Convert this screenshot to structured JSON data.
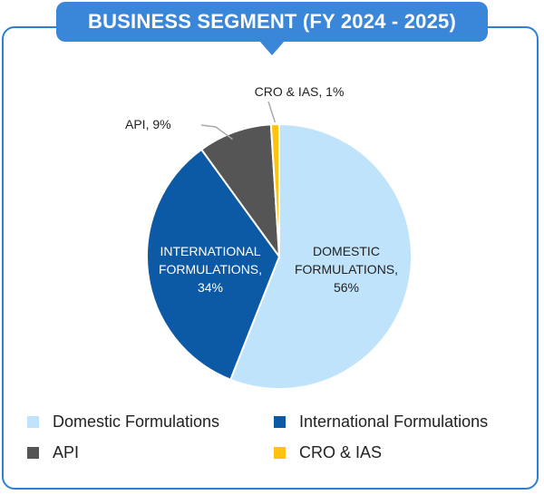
{
  "title": "BUSINESS SEGMENT (FY 2024 - 2025)",
  "chart_data": {
    "type": "pie",
    "title": "BUSINESS SEGMENT (FY 2024 - 2025)",
    "slices": [
      {
        "name": "Domestic Formulations",
        "value": 56,
        "label_lines": [
          "DOMESTIC",
          "FORMULATIONS,",
          "56%"
        ],
        "color": "#bfe3fb"
      },
      {
        "name": "International Formulations",
        "value": 34,
        "label_lines": [
          "INTERNATIONAL",
          "FORMULATIONS,",
          "34%"
        ],
        "color": "#0c5aa6"
      },
      {
        "name": "API",
        "value": 9,
        "label_lines": [
          "API, 9%"
        ],
        "color": "#555555"
      },
      {
        "name": "CRO & IAS",
        "value": 1,
        "label_lines": [
          "CRO & IAS, 1%"
        ],
        "color": "#ffc20e"
      }
    ],
    "legend_position": "bottom"
  },
  "legend": [
    {
      "label": "Domestic Formulations",
      "color": "#bfe3fb"
    },
    {
      "label": "International Formulations",
      "color": "#0c5aa6"
    },
    {
      "label": "API",
      "color": "#555555"
    },
    {
      "label": "CRO & IAS",
      "color": "#ffc20e"
    }
  ]
}
